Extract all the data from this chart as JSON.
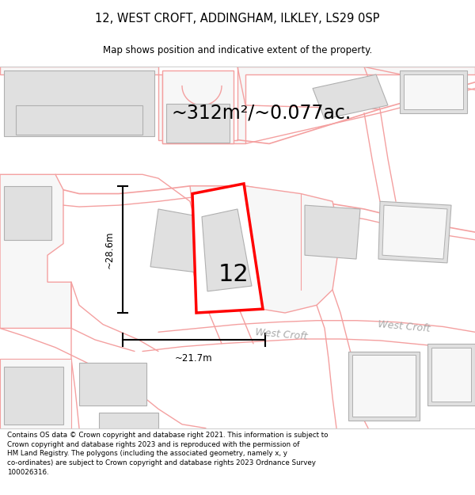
{
  "title_line1": "12, WEST CROFT, ADDINGHAM, ILKLEY, LS29 0SP",
  "title_line2": "Map shows position and indicative extent of the property.",
  "area_text": "~312m²/~0.077ac.",
  "label_number": "12",
  "dim_vertical": "~28.6m",
  "dim_horizontal": "~21.7m",
  "road_label": "West Croft",
  "footer_text": "Contains OS data © Crown copyright and database right 2021. This information is subject to Crown copyright and database rights 2023 and is reproduced with the permission of HM Land Registry. The polygons (including the associated geometry, namely x, y co-ordinates) are subject to Crown copyright and database rights 2023 Ordnance Survey 100026316.",
  "bg_color": "#ffffff",
  "map_bg": "#f7f7f7",
  "highlight_color": "#ff0000",
  "building_fill": "#e0e0e0",
  "building_edge": "#b0b0b0",
  "boundary_color": "#f4a0a0",
  "road_line_color": "#f4a0a0"
}
